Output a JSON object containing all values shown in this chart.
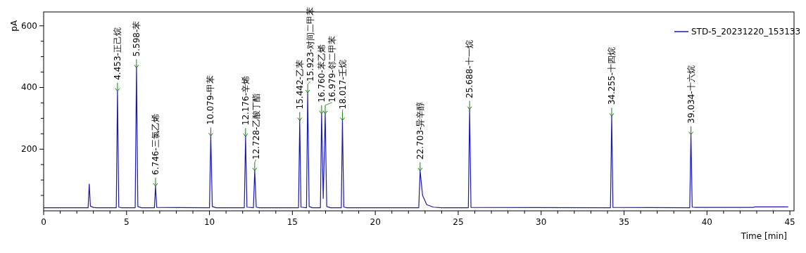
{
  "chart_data": {
    "type": "line",
    "xlabel": "Time [min]",
    "ylabel": "pA",
    "xlim": [
      0,
      45.25
    ],
    "ylim": [
      0,
      645
    ],
    "xticks": [
      0,
      {
        "value": 1,
        "label": null
      },
      {
        "value": 2,
        "label": null
      },
      {
        "value": 3,
        "label": null
      },
      {
        "value": 4,
        "label": null
      },
      5,
      {
        "value": 6,
        "label": null
      },
      {
        "value": 7,
        "label": null
      },
      {
        "value": 8,
        "label": null
      },
      {
        "value": 9,
        "label": null
      },
      10,
      {
        "value": 11,
        "label": null
      },
      {
        "value": 12,
        "label": null
      },
      {
        "value": 13,
        "label": null
      },
      {
        "value": 14,
        "label": null
      },
      15,
      {
        "value": 16,
        "label": null
      },
      {
        "value": 17,
        "label": null
      },
      {
        "value": 18,
        "label": null
      },
      {
        "value": 19,
        "label": null
      },
      20,
      {
        "value": 21,
        "label": null
      },
      {
        "value": 22,
        "label": null
      },
      {
        "value": 23,
        "label": null
      },
      {
        "value": 24,
        "label": null
      },
      25,
      {
        "value": 26,
        "label": null
      },
      {
        "value": 27,
        "label": null
      },
      {
        "value": 28,
        "label": null
      },
      {
        "value": 29,
        "label": null
      },
      30,
      {
        "value": 31,
        "label": null
      },
      {
        "value": 32,
        "label": null
      },
      {
        "value": 33,
        "label": null
      },
      {
        "value": 34,
        "label": null
      },
      35,
      {
        "value": 36,
        "label": null
      },
      {
        "value": 37,
        "label": null
      },
      {
        "value": 38,
        "label": null
      },
      {
        "value": 39,
        "label": null
      },
      40,
      {
        "value": 41,
        "label": null
      },
      {
        "value": 42,
        "label": null
      },
      {
        "value": 43,
        "label": null
      },
      {
        "value": 44,
        "label": null
      },
      45
    ],
    "yticks": [
      {
        "value": 50,
        "label": null
      },
      {
        "value": 100,
        "label": null
      },
      {
        "value": 150,
        "label": null
      },
      200,
      {
        "value": 250,
        "label": null
      },
      {
        "value": 300,
        "label": null
      },
      {
        "value": 350,
        "label": null
      },
      400,
      {
        "value": 450,
        "label": null
      },
      {
        "value": 500,
        "label": null
      },
      {
        "value": 550,
        "label": null
      },
      600
    ],
    "grid": false,
    "legend": "top right",
    "series": [
      {
        "name": "STD-5_20231220_153133",
        "color": "#1a1ab0",
        "x": [
          0,
          2.68,
          2.75,
          2.82,
          3.0,
          3.2,
          4.38,
          4.453,
          4.53,
          4.7,
          5.52,
          5.598,
          5.68,
          5.9,
          6.68,
          6.746,
          6.82,
          10.0,
          10.079,
          10.17,
          10.4,
          12.1,
          12.176,
          12.26,
          12.65,
          12.728,
          12.82,
          13.0,
          15.37,
          15.442,
          15.52,
          15.85,
          15.923,
          16.01,
          16.2,
          16.69,
          16.76,
          16.86,
          16.979,
          17.07,
          17.3,
          17.95,
          18.017,
          18.1,
          18.3,
          22.62,
          22.703,
          22.85,
          23.1,
          23.5,
          24.0,
          25.61,
          25.688,
          25.77,
          34.18,
          34.255,
          34.33,
          38.96,
          39.034,
          39.11,
          39.3,
          42.8,
          42.9,
          44.9
        ],
        "values": [
          10,
          10,
          87,
          15,
          11,
          10,
          10,
          388,
          12,
          10,
          10,
          464,
          14,
          10,
          10,
          80,
          11,
          10,
          243,
          14,
          10,
          10,
          241,
          12,
          10,
          130,
          12,
          10,
          10,
          293,
          12,
          10,
          383,
          14,
          10,
          10,
          315,
          40,
          315,
          14,
          10,
          10,
          293,
          12,
          10,
          10,
          130,
          50,
          20,
          12,
          10,
          10,
          329,
          11,
          10,
          307,
          11,
          10,
          247,
          12,
          11,
          11,
          13,
          13
        ]
      }
    ],
    "annotations": [
      {
        "text": "4.453-正己烷",
        "x": 4.453,
        "y": 388
      },
      {
        "text": "5.598-苯",
        "x": 5.598,
        "y": 464
      },
      {
        "text": "6.746-三氯乙烯",
        "x": 6.746,
        "y": 80
      },
      {
        "text": "10.079-甲苯",
        "x": 10.079,
        "y": 243
      },
      {
        "text": "12.176-辛烯",
        "x": 12.176,
        "y": 241
      },
      {
        "text": "12.728-乙酸丁酯",
        "x": 12.728,
        "y": 130
      },
      {
        "text": "15.442-乙苯",
        "x": 15.442,
        "y": 293
      },
      {
        "text": "15.923-对间二甲苯",
        "x": 15.923,
        "y": 383
      },
      {
        "text": "16.760-苯乙烯",
        "x": 16.76,
        "y": 315
      },
      {
        "text": "16.979-邻二甲苯",
        "x": 16.979,
        "y": 315
      },
      {
        "text": "18.017-壬烷",
        "x": 18.017,
        "y": 293
      },
      {
        "text": "22.703-异辛醇",
        "x": 22.703,
        "y": 130
      },
      {
        "text": "25.688-十一烷",
        "x": 25.688,
        "y": 329
      },
      {
        "text": "34.255-十四烷",
        "x": 34.255,
        "y": 307
      },
      {
        "text": "39.034-十六烷",
        "x": 39.034,
        "y": 247
      }
    ]
  }
}
